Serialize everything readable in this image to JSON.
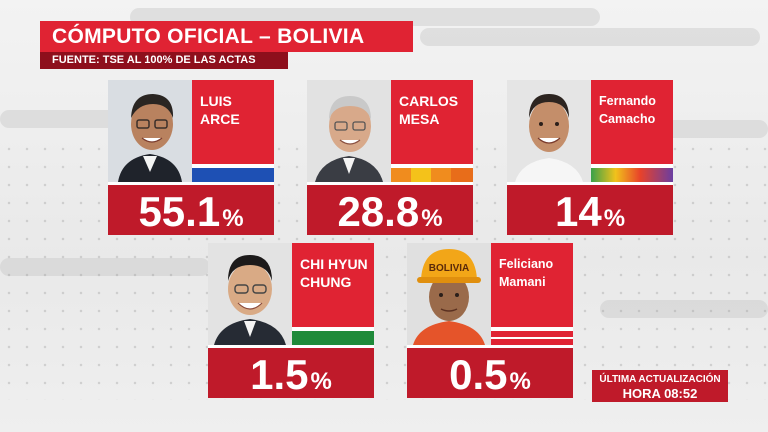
{
  "header": {
    "title": "CÓMPUTO OFICIAL – BOLIVIA",
    "source": "FUENTE: TSE AL 100% DE LAS ACTAS"
  },
  "candidates": [
    {
      "name_line1": "LUIS",
      "name_line2": "ARCE",
      "percent": "55.1",
      "sign": "%"
    },
    {
      "name_line1": "CARLOS",
      "name_line2": "MESA",
      "percent": "28.8",
      "sign": "%"
    },
    {
      "name_line1": "Fernando",
      "name_line2": "Camacho",
      "percent": "14",
      "sign": "%"
    },
    {
      "name_line1": "CHI HYUN",
      "name_line2": "CHUNG",
      "percent": "1.5",
      "sign": "%"
    },
    {
      "name_line1": "Feliciano",
      "name_line2": "Mamani",
      "percent": "0.5",
      "sign": "%"
    }
  ],
  "helmet_text": "BOLIVIA",
  "update": {
    "label": "ÚLTIMA ACTUALIZACIÓN",
    "time": "HORA 08:52"
  },
  "colors": {
    "accent_red": "#e02333",
    "dark_red": "#8e0f1c",
    "percent_red": "#bf1a2a"
  }
}
